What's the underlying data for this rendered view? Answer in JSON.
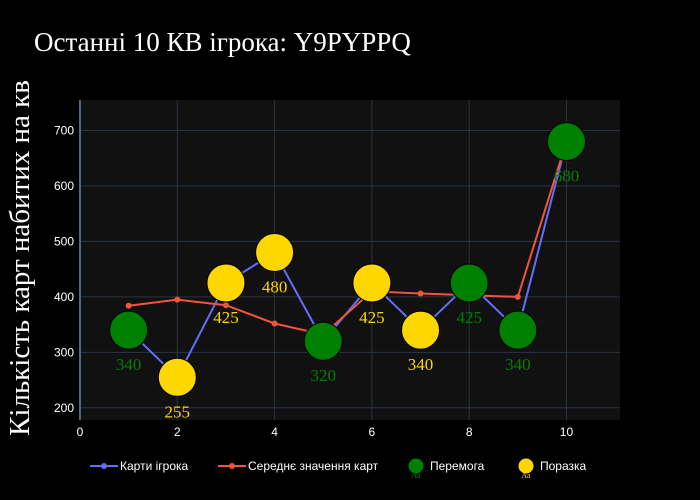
{
  "chart_data": {
    "type": "line",
    "title": "Останні 10 КВ ігрока: Y9PYPPQ",
    "xlabel": "",
    "ylabel": "Кількість карт набитих на кв",
    "xlim": [
      0,
      11.1
    ],
    "ylim": [
      178,
      755
    ],
    "x_ticks": [
      0,
      2,
      4,
      6,
      8,
      10
    ],
    "y_ticks": [
      200,
      300,
      400,
      500,
      600,
      700
    ],
    "grid": true,
    "legend_position": "bottom",
    "series": [
      {
        "name": "Карти ігрока",
        "color": "#636efa",
        "x": [
          1,
          2,
          3,
          4,
          5,
          6,
          7,
          8,
          9,
          10
        ],
        "values": [
          340,
          255,
          425,
          480,
          320,
          425,
          340,
          425,
          340,
          680
        ]
      },
      {
        "name": "Середнє значення карт",
        "color": "#ef553b",
        "x": [
          1,
          2,
          3,
          4,
          5,
          6,
          7,
          8,
          9,
          10
        ],
        "values": [
          384,
          395,
          385,
          352,
          332,
          410,
          406,
          403,
          400,
          680
        ]
      }
    ],
    "markers": [
      {
        "name": "Перемога",
        "legend_symbol_text": "Аа",
        "color": "#008000",
        "outline": "#000000",
        "label_position": "below",
        "points": [
          {
            "x": 1,
            "y": 340,
            "label": "340"
          },
          {
            "x": 5,
            "y": 320,
            "label": "320"
          },
          {
            "x": 8,
            "y": 425,
            "label": "425"
          },
          {
            "x": 9,
            "y": 340,
            "label": "340"
          },
          {
            "x": 10,
            "y": 680,
            "label": "680"
          }
        ]
      },
      {
        "name": "Поразка",
        "legend_symbol_text": "Аа",
        "color": "#ffd700",
        "outline": "#000000",
        "label_position": "below",
        "points": [
          {
            "x": 2,
            "y": 255,
            "label": "255"
          },
          {
            "x": 3,
            "y": 425,
            "label": "425"
          },
          {
            "x": 4,
            "y": 480,
            "label": "480"
          },
          {
            "x": 6,
            "y": 425,
            "label": "425"
          },
          {
            "x": 7,
            "y": 340,
            "label": "340"
          }
        ]
      }
    ]
  }
}
